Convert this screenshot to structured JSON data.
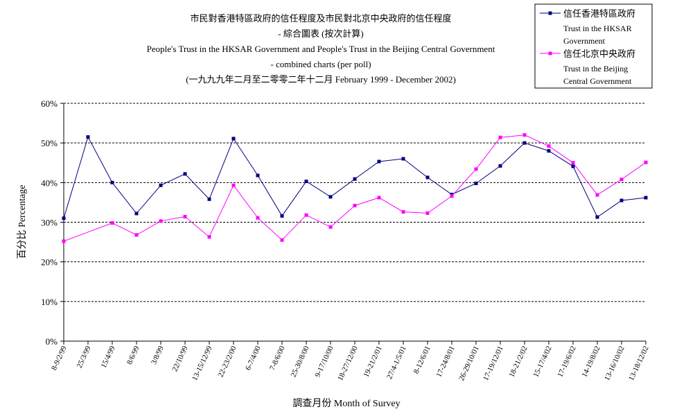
{
  "chart_data": {
    "type": "line",
    "title_lines": [
      "市民對香港特區政府的信任程度及市民對北京中央政府的信任程度",
      "- 綜合圖表 (按次計算)",
      "People's Trust in the HKSAR Government and People's Trust in the Beijing Central Government",
      "- combined charts (per poll)",
      "(一九九九年二月至二零零二年十二月 February 1999 - December 2002)"
    ],
    "xlabel": "調查月份 Month of Survey",
    "ylabel": "百分比 Percentage",
    "ylim": [
      0,
      60
    ],
    "yticks": [
      "0%",
      "10%",
      "20%",
      "30%",
      "40%",
      "50%",
      "60%"
    ],
    "grid": true,
    "legend_position": "top-right",
    "categories": [
      "8-9/2/99",
      "25/3/99",
      "15/4/99",
      "8/6/99",
      "3/8/99",
      "22/10/99",
      "13-15/12/99",
      "22-23/2/00",
      "6-7/4/00",
      "7-8/6/00",
      "25-30/8/00",
      "9-17/10/00",
      "18-27/12/00",
      "19-21/2/01",
      "27/4-1/5/01",
      "8-12/6/01",
      "17-24/8/01",
      "26-29/10/01",
      "17-19/12/01",
      "18-21/2/02",
      "15-17/4/02",
      "17-19/6/02",
      "14-19/8/02",
      "13-16/10/02",
      "13-18/12/02"
    ],
    "series": [
      {
        "name": "信任香港特區政府",
        "name_en": [
          "Trust in the HKSAR",
          "Government"
        ],
        "color": "#000080",
        "values": [
          31,
          51.5,
          40,
          32.2,
          39.3,
          42.2,
          35.8,
          51.1,
          41.8,
          31.6,
          40.3,
          36.4,
          40.9,
          45.3,
          46,
          41.3,
          37,
          39.8,
          44.2,
          50,
          48,
          44.1,
          31.3,
          35.5,
          36.2
        ]
      },
      {
        "name": "信任北京中央政府",
        "name_en": [
          "Trust in the Beijing",
          "Central Government"
        ],
        "color": "#ff00ff",
        "values": [
          25.2,
          null,
          29.8,
          26.8,
          30.3,
          31.4,
          26.3,
          39.3,
          31.1,
          25.5,
          31.8,
          28.8,
          34.2,
          36.2,
          32.6,
          32.3,
          36.6,
          43.4,
          51.4,
          52,
          49.2,
          45,
          36.9,
          40.8,
          45.1
        ]
      }
    ]
  }
}
